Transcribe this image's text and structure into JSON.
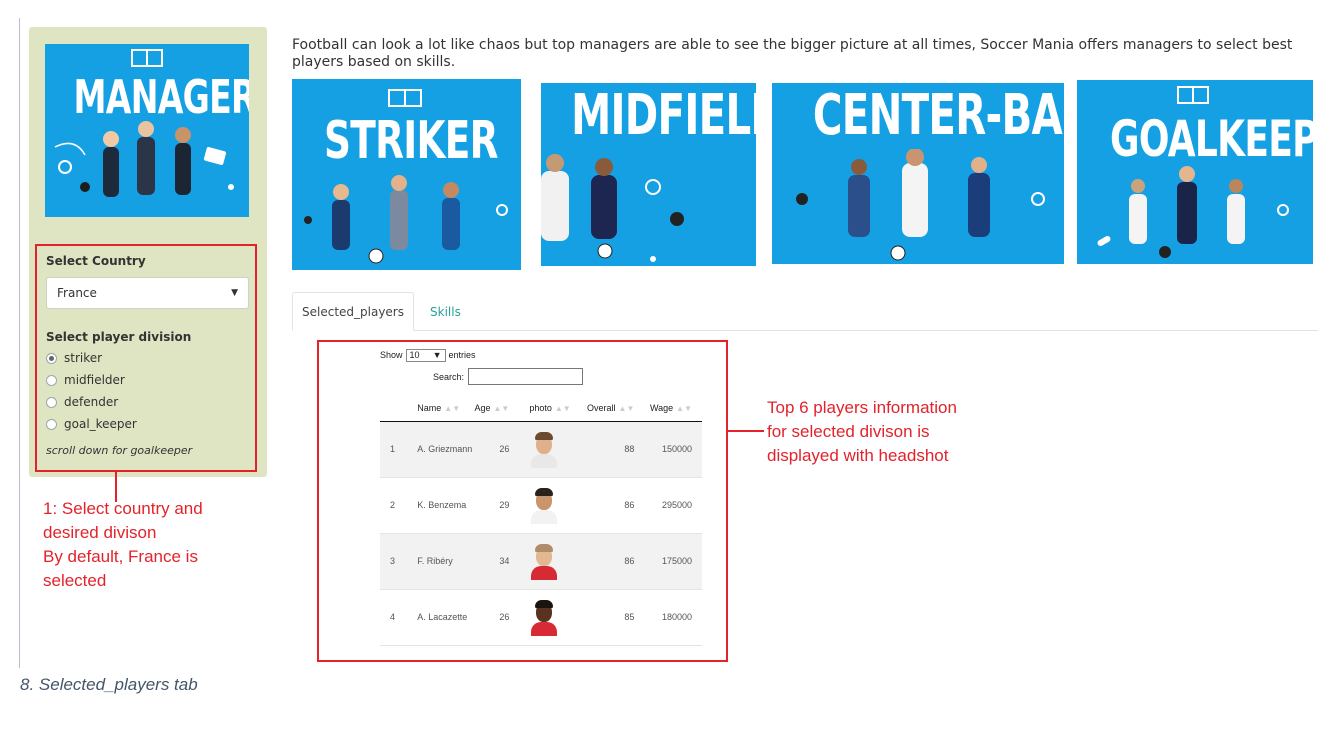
{
  "intro_text": "Football can look a lot like chaos but top managers are able to see the bigger picture at all times, Soccer Mania offers managers to select best players based on skills.",
  "sidebar": {
    "banner_word": "MANAGER",
    "country_label": "Select Country",
    "country_value": "France",
    "division_label": "Select player division",
    "divisions": [
      "striker",
      "midfielder",
      "defender",
      "goal_keeper"
    ],
    "selected_division": "striker",
    "scroll_hint": "scroll down for goalkeeper"
  },
  "banners": [
    "STRIKER",
    "MIDFIELD",
    "CENTER-BACK",
    "GOALKEEPER"
  ],
  "tabs": [
    {
      "label": "Selected_players",
      "active": true
    },
    {
      "label": "Skills",
      "active": false
    }
  ],
  "table": {
    "show_label": "Show",
    "page_size": "10",
    "entries_label": "entries",
    "search_label": "Search:",
    "columns": [
      "Name",
      "Age",
      "photo",
      "Overall",
      "Wage"
    ],
    "rows": [
      {
        "idx": "1",
        "name": "A. Griezmann",
        "age": "26",
        "overall": "88",
        "wage": "150000"
      },
      {
        "idx": "2",
        "name": "K. Benzema",
        "age": "29",
        "overall": "86",
        "wage": "295000"
      },
      {
        "idx": "3",
        "name": "F. Ribéry",
        "age": "34",
        "overall": "86",
        "wage": "175000"
      },
      {
        "idx": "4",
        "name": "A. Lacazette",
        "age": "26",
        "overall": "85",
        "wage": "180000"
      }
    ]
  },
  "annotations": {
    "step1": [
      "1: Select country and",
      "desired divison",
      "By default, France is",
      "selected"
    ],
    "top6": [
      "Top 6 players information",
      "for selected divison is",
      "displayed with headshot"
    ]
  },
  "caption": "8. Selected_players tab",
  "colors": {
    "banner_blue": "#16a0e4",
    "sidebar_bg": "#dfe4c2",
    "annotation_red": "#e3222b",
    "tab_link": "#2aa198"
  }
}
